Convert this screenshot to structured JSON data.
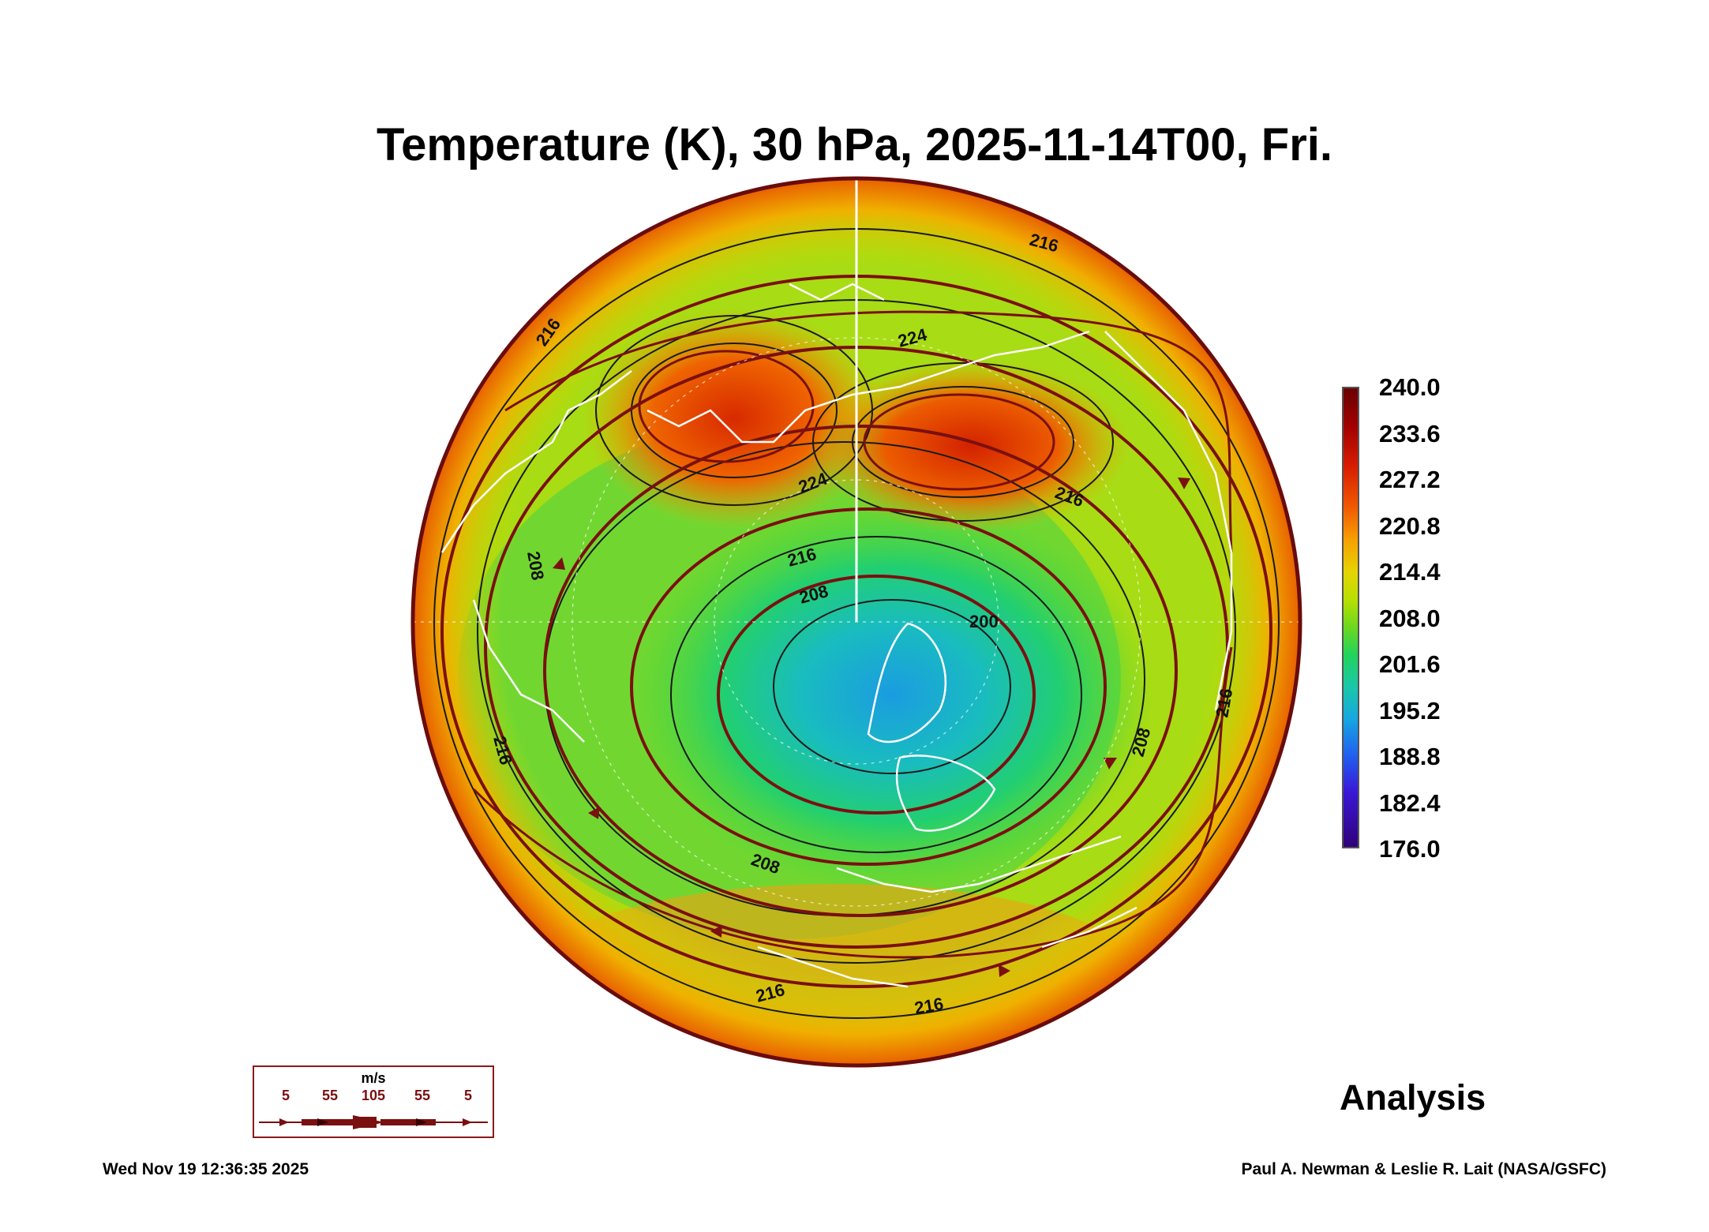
{
  "title": "Temperature (K), 30 hPa, 2025-11-14T00, Fri.",
  "colorbar": {
    "labels": [
      "240.0",
      "233.6",
      "227.2",
      "220.8",
      "214.4",
      "208.0",
      "201.6",
      "195.2",
      "188.8",
      "182.4",
      "176.0"
    ],
    "min": 176.0,
    "max": 240.0,
    "unit": "K"
  },
  "contour_labels": [
    "224",
    "224",
    "216",
    "216",
    "216",
    "216",
    "208",
    "208",
    "208",
    "208",
    "200",
    "216",
    "216",
    "216",
    "216"
  ],
  "wind_legend": {
    "unit": "m/s",
    "values": [
      "5",
      "55",
      "105",
      "55",
      "5"
    ]
  },
  "analysis_label": "Analysis",
  "footer": {
    "date": "Wed Nov 19 12:36:35 2025",
    "credit": "Paul A. Newman & Leslie R. Lait (NASA/GSFC)"
  },
  "colors": {
    "streamline": "#7a1010",
    "coastline": "#ffffff",
    "contour": "#1a1a1a"
  }
}
